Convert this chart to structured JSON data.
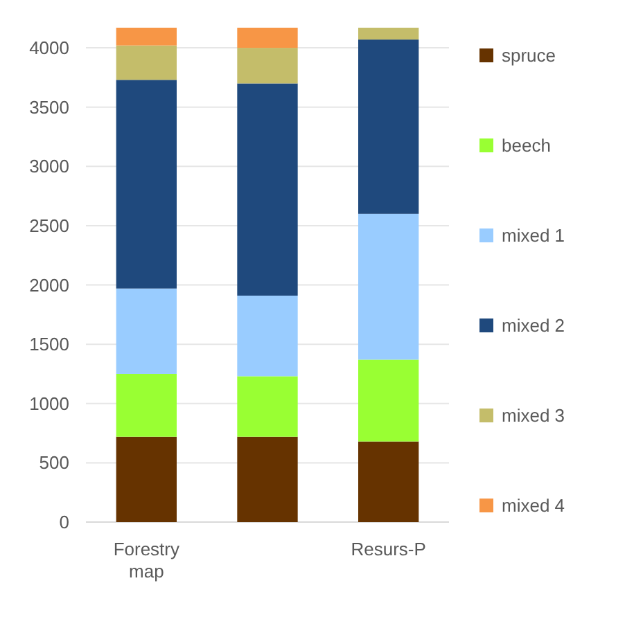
{
  "chart_data": {
    "type": "bar",
    "stacked": true,
    "categories": [
      "Forestry map",
      null,
      "Resurs-P"
    ],
    "series": [
      {
        "name": "spruce",
        "color": "#663300",
        "values": [
          720,
          720,
          680
        ]
      },
      {
        "name": "beech",
        "color": "#99ff33",
        "values": [
          530,
          510,
          690
        ]
      },
      {
        "name": "mixed 1",
        "color": "#99ccff",
        "values": [
          720,
          680,
          1230
        ]
      },
      {
        "name": "mixed 2",
        "color": "#1f497d",
        "values": [
          1760,
          1790,
          1470
        ]
      },
      {
        "name": "mixed 3",
        "color": "#c4bd6a",
        "values": [
          290,
          300,
          100
        ]
      },
      {
        "name": "mixed 4",
        "color": "#f79646",
        "values": [
          150,
          170,
          0
        ]
      }
    ],
    "ylim": [
      0,
      4170
    ],
    "yticks": [
      0,
      500,
      1000,
      1500,
      2000,
      2500,
      3000,
      3500,
      4000
    ],
    "grid": "y",
    "legend": "right"
  }
}
